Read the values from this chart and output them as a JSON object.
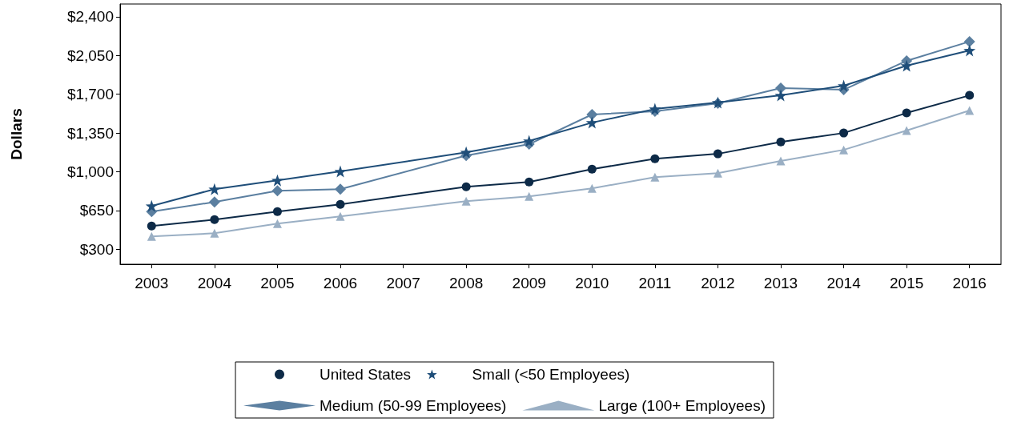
{
  "chart_data": {
    "type": "line",
    "ylabel": "Dollars",
    "categories": [
      "2003",
      "2004",
      "2005",
      "2006",
      "2007",
      "2008",
      "2009",
      "2010",
      "2011",
      "2012",
      "2013",
      "2014",
      "2015",
      "2016"
    ],
    "series": [
      {
        "name": "United States",
        "color": "#0d2a47",
        "marker": "circle",
        "values": [
          510,
          568,
          640,
          706,
          null,
          865,
          908,
          1024,
          1118,
          1162,
          1270,
          1350,
          1531,
          1690
        ]
      },
      {
        "name": "Small (<50 Employees)",
        "color": "#1f4e79",
        "marker": "star",
        "values": [
          691,
          843,
          923,
          1003,
          null,
          1176,
          1278,
          1444,
          1567,
          1625,
          1690,
          1777,
          1958,
          2096
        ]
      },
      {
        "name": "Medium (50-99 Employees)",
        "color": "#5b7fa0",
        "marker": "diamond",
        "values": [
          640,
          727,
          829,
          843,
          null,
          1147,
          1249,
          1517,
          1546,
          1618,
          1756,
          1741,
          2002,
          2176
        ]
      },
      {
        "name": "Large (100+ Employees)",
        "color": "#9aafc4",
        "marker": "triangle",
        "values": [
          416,
          445,
          532,
          597,
          null,
          735,
          778,
          850,
          952,
          988,
          1097,
          1198,
          1372,
          1553
        ]
      }
    ],
    "ylim": [
      165,
      2515
    ],
    "yticks": [
      {
        "value": 300,
        "label": "$300"
      },
      {
        "value": 650,
        "label": "$650"
      },
      {
        "value": 1000,
        "label": "$1,000"
      },
      {
        "value": 1350,
        "label": "$1,350"
      },
      {
        "value": 1700,
        "label": "$1,700"
      },
      {
        "value": 2050,
        "label": "$2,050"
      },
      {
        "value": 2400,
        "label": "$2,400"
      }
    ],
    "grid": false,
    "legend": "bottom"
  }
}
